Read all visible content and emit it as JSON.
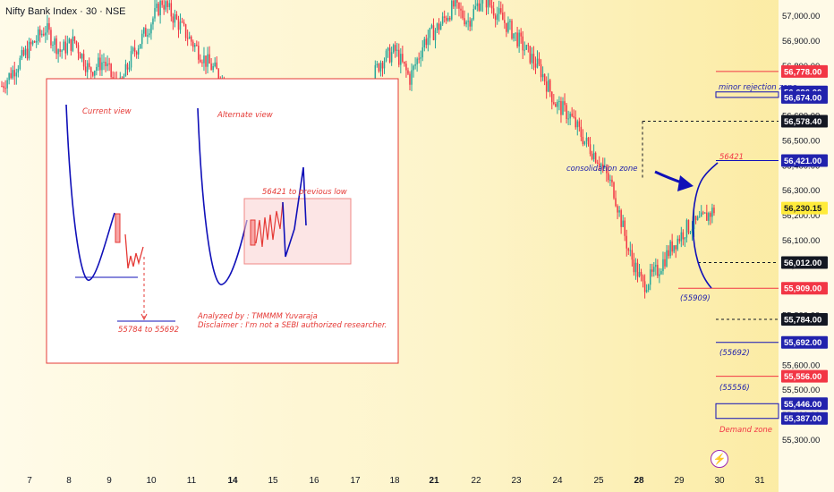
{
  "header": {
    "symbol_title": "Nifty Bank Index · 30 · NSE"
  },
  "chart_data": {
    "type": "candlestick",
    "symbol": "Nifty Bank Index",
    "interval": "30",
    "exchange": "NSE",
    "x_tick_labels": [
      "7",
      "8",
      "9",
      "10",
      "11",
      "14",
      "15",
      "16",
      "17",
      "18",
      "21",
      "22",
      "23",
      "24",
      "25",
      "28",
      "29",
      "30",
      "31"
    ],
    "y_tick_labels": [
      "57,000.00",
      "56,900.00",
      "56,800.00",
      "56,700.00",
      "56,600.00",
      "56,500.00",
      "56,400.00",
      "56,300.00",
      "56,200.00",
      "56,100.00",
      "56,000.00",
      "55,900.00",
      "55,800.00",
      "55,700.00",
      "55,600.00",
      "55,500.00",
      "55,400.00",
      "55,300.00"
    ],
    "ylim": [
      55250,
      57080
    ],
    "price_closes": [
      56720,
      56800,
      56880,
      56950,
      56860,
      56900,
      56780,
      56820,
      56700,
      56850,
      56950,
      57060,
      56980,
      56900,
      56820,
      56760,
      56620,
      56700,
      56650,
      56480,
      56380,
      56300,
      56260,
      56230,
      56500,
      56700,
      56820,
      56860,
      56750,
      56900,
      56960,
      57040,
      56980,
      57080,
      57010,
      56940,
      56860,
      56780,
      56650,
      56600,
      56500,
      56420,
      56300,
      56060,
      55920,
      55980,
      56080,
      56150,
      56180,
      56230
    ],
    "horizontal_levels": [
      {
        "label": "56,778.00",
        "value": 56778,
        "color": "#f23645"
      },
      {
        "label": "56,696.00",
        "value": 56696,
        "color": "#2122ad"
      },
      {
        "label": "56,674.00",
        "value": 56674,
        "color": "#2122ad"
      },
      {
        "label": "56,578.40",
        "value": 56578.4,
        "color": "#131722"
      },
      {
        "label": "56,421.00",
        "value": 56421,
        "color": "#2122ad"
      },
      {
        "label": "56,230.15",
        "value": 56230.15,
        "color": "#ffeb3b"
      },
      {
        "label": "56,012.00",
        "value": 56012,
        "color": "#131722"
      },
      {
        "label": "55,909.00",
        "value": 55909,
        "color": "#f23645"
      },
      {
        "label": "55,784.00",
        "value": 55784,
        "color": "#131722"
      },
      {
        "label": "55,692.00",
        "value": 55692,
        "color": "#2122ad"
      },
      {
        "label": "55,556.00",
        "value": 55556,
        "color": "#f23645"
      },
      {
        "label": "55,446.00",
        "value": 55446,
        "color": "#2122ad"
      },
      {
        "label": "55,387.00",
        "value": 55387,
        "color": "#2122ad"
      }
    ],
    "annotations": {
      "minor_rejection": "minor rejection zone",
      "consolidation": "consolidation zone",
      "level_56421": "56421",
      "level_55909": "(55909)",
      "level_55692": "(55692)",
      "level_55556": "(55556)",
      "demand_zone": "Demand zone"
    },
    "inset": {
      "current_view": "Current view",
      "alternate_view": "Alternate view",
      "target_range": "55784 to 55692",
      "prev_low": "56421 to previous low",
      "analyzed_by": "Analyzed by : TMMMM Yuvaraja",
      "disclaimer": "Disclaimer : I'm not a SEBI authorized researcher."
    },
    "colors": {
      "up": "#26a69a",
      "down": "#f23645",
      "drawing_blue": "#1010b8",
      "drawing_red": "#e53935"
    }
  },
  "flash_icon": "⚡"
}
